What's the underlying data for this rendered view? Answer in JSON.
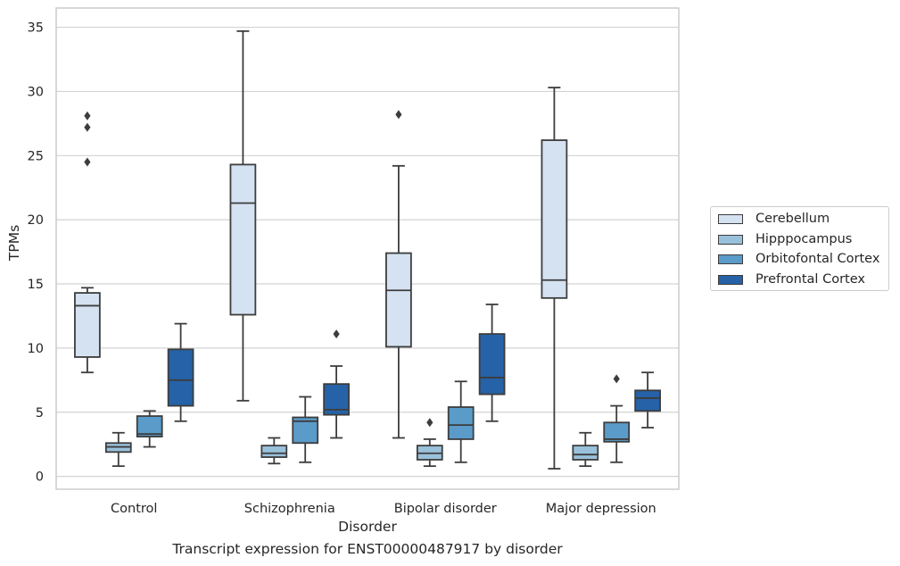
{
  "caption": "Transcript expression for ENST00000487917 by disorder",
  "chart_data": {
    "type": "box",
    "xlabel": "Disorder",
    "ylabel": "TPMs",
    "ylim": [
      -1,
      36.5
    ],
    "yticks": [
      0,
      5,
      10,
      15,
      20,
      25,
      30,
      35
    ],
    "grid": true,
    "legend_position": "right",
    "categories": [
      "Control",
      "Schizophrenia",
      "Bipolar disorder",
      "Major depression"
    ],
    "series": [
      {
        "name": "Cerebellum",
        "color": "#d5e2f1",
        "boxes": [
          {
            "whisker_low": 8.1,
            "q1": 9.3,
            "median": 13.3,
            "q3": 14.3,
            "whisker_high": 14.7,
            "outliers": [
              24.5,
              27.2,
              28.1
            ]
          },
          {
            "whisker_low": 5.9,
            "q1": 12.6,
            "median": 21.3,
            "q3": 24.3,
            "whisker_high": 34.7,
            "outliers": []
          },
          {
            "whisker_low": 3.0,
            "q1": 10.1,
            "median": 14.5,
            "q3": 17.4,
            "whisker_high": 24.2,
            "outliers": [
              28.2
            ]
          },
          {
            "whisker_low": 0.6,
            "q1": 13.9,
            "median": 15.3,
            "q3": 26.2,
            "whisker_high": 30.3,
            "outliers": []
          }
        ]
      },
      {
        "name": "Hipppocampus",
        "color": "#9ac1db",
        "boxes": [
          {
            "whisker_low": 0.8,
            "q1": 1.9,
            "median": 2.3,
            "q3": 2.6,
            "whisker_high": 3.4,
            "outliers": []
          },
          {
            "whisker_low": 1.0,
            "q1": 1.5,
            "median": 1.8,
            "q3": 2.4,
            "whisker_high": 3.0,
            "outliers": []
          },
          {
            "whisker_low": 0.8,
            "q1": 1.3,
            "median": 1.8,
            "q3": 2.4,
            "whisker_high": 2.9,
            "outliers": [
              4.2
            ]
          },
          {
            "whisker_low": 0.8,
            "q1": 1.3,
            "median": 1.7,
            "q3": 2.4,
            "whisker_high": 3.4,
            "outliers": []
          }
        ]
      },
      {
        "name": "Orbitofontal Cortex",
        "color": "#5a9bc9",
        "boxes": [
          {
            "whisker_low": 2.3,
            "q1": 3.1,
            "median": 3.3,
            "q3": 4.7,
            "whisker_high": 5.1,
            "outliers": []
          },
          {
            "whisker_low": 1.1,
            "q1": 2.6,
            "median": 4.3,
            "q3": 4.6,
            "whisker_high": 6.2,
            "outliers": []
          },
          {
            "whisker_low": 1.1,
            "q1": 2.9,
            "median": 4.0,
            "q3": 5.4,
            "whisker_high": 7.4,
            "outliers": []
          },
          {
            "whisker_low": 1.1,
            "q1": 2.7,
            "median": 2.9,
            "q3": 4.2,
            "whisker_high": 5.5,
            "outliers": [
              7.6
            ]
          }
        ]
      },
      {
        "name": "Prefrontal Cortex",
        "color": "#2562a7",
        "boxes": [
          {
            "whisker_low": 4.3,
            "q1": 5.5,
            "median": 7.5,
            "q3": 9.9,
            "whisker_high": 11.9,
            "outliers": []
          },
          {
            "whisker_low": 3.0,
            "q1": 4.8,
            "median": 5.2,
            "q3": 7.2,
            "whisker_high": 8.6,
            "outliers": [
              11.1
            ]
          },
          {
            "whisker_low": 4.3,
            "q1": 6.4,
            "median": 7.7,
            "q3": 11.1,
            "whisker_high": 13.4,
            "outliers": []
          },
          {
            "whisker_low": 3.8,
            "q1": 5.1,
            "median": 6.1,
            "q3": 6.7,
            "whisker_high": 8.1,
            "outliers": []
          }
        ]
      }
    ]
  }
}
